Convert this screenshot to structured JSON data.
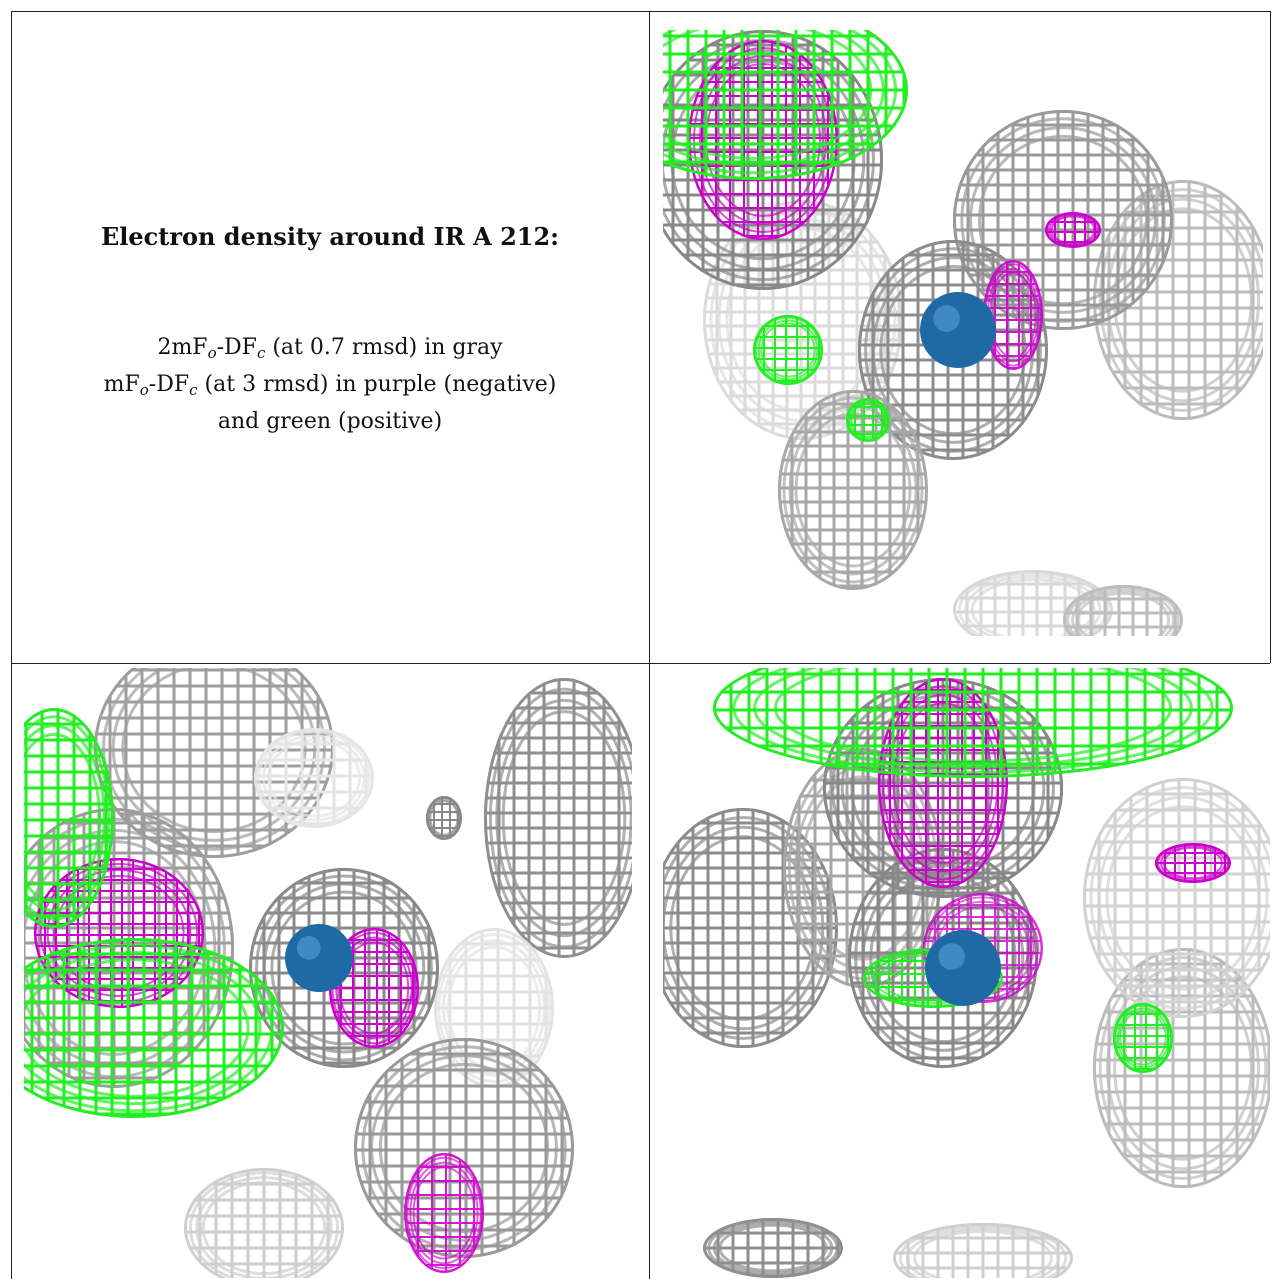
{
  "caption": {
    "title": "Electron density around IR A 212:",
    "line1_pre": "2mF",
    "line1_sub1": "o",
    "line1_mid": "-DF",
    "line1_sub2": "c",
    "line1_post": " (at 0.7 rmsd) in gray",
    "line2_pre": "mF",
    "line2_sub1": "o",
    "line2_mid": "-DF",
    "line2_sub2": "c",
    "line2_post": " (at 3 rmsd) in purple (negative)",
    "line3": "and green (positive)"
  },
  "colors": {
    "map_2fofc": "#9a9a9a",
    "map_neg": "#cc00cc",
    "map_pos": "#22ee22",
    "atom": "#1f6aa5",
    "border": "#222222"
  },
  "panels": [
    {
      "name": "view-top-right"
    },
    {
      "name": "view-bottom-left"
    },
    {
      "name": "view-bottom-right"
    }
  ]
}
